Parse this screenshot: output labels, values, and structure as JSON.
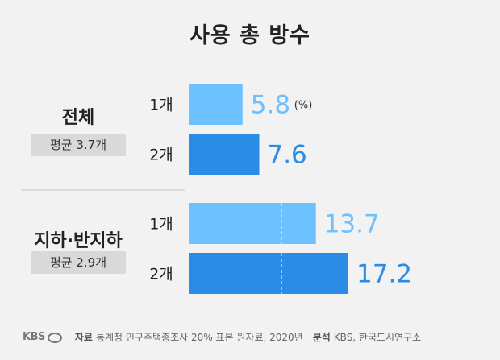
{
  "chart_data": {
    "type": "bar",
    "title": "사용 총 방수",
    "unit_note": "(%)",
    "xlim": [
      0,
      25
    ],
    "groups": [
      {
        "name": "전체",
        "average": "평균 3.7개",
        "bars": [
          {
            "category": "1개",
            "value": 5.8,
            "label": "5.8",
            "color": "#6ec1ff"
          },
          {
            "category": "2개",
            "value": 7.6,
            "label": "7.6",
            "color": "#2b8ce6"
          }
        ]
      },
      {
        "name": "지하·반지하",
        "average": "평균 2.9개",
        "bars": [
          {
            "category": "1개",
            "value": 13.7,
            "label": "13.7",
            "color": "#6ec1ff"
          },
          {
            "category": "2개",
            "value": 17.2,
            "label": "17.2",
            "color": "#2b8ce6"
          }
        ]
      }
    ]
  },
  "footer": {
    "logo": "KBS",
    "source_key": "자료",
    "source_text": "통계청 인구주택총조사 20% 표본 원자료, 2020년",
    "analysis_key": "분석",
    "analysis_text": "KBS, 한국도시연구소"
  }
}
